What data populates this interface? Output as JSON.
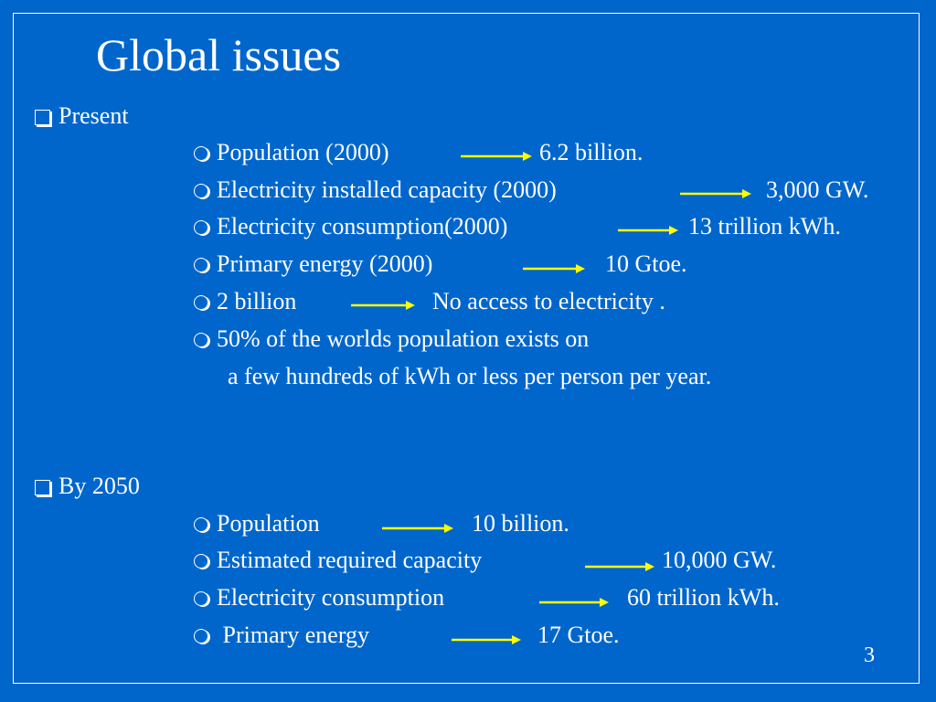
{
  "title": "Global issues",
  "present": {
    "heading": "Present",
    "items": [
      {
        "label": "Population (2000)",
        "value": "6.2 billion."
      },
      {
        "label": "Electricity installed capacity (2000)",
        "value": "3,000 GW."
      },
      {
        "label": "Electricity consumption(2000)",
        "value": "13 trillion kWh."
      },
      {
        "label": "Primary energy (2000)",
        "value": "10 Gtoe."
      },
      {
        "label": "2 billion",
        "value": "No access to electricity ."
      },
      {
        "label": "50% of the worlds population exists  on",
        "continuation": "a few hundreds of  kWh or less per person per year."
      }
    ]
  },
  "by2050": {
    "heading": "By 2050",
    "items": [
      {
        "label": "Population",
        "value": "10 billion."
      },
      {
        "label": "Estimated required capacity",
        "value": "10,000 GW."
      },
      {
        "label": "Electricity consumption",
        "value": "60 trillion kWh."
      },
      {
        "label": " Primary energy",
        "value": "17 Gtoe."
      }
    ]
  },
  "page_number": "3",
  "colors": {
    "background": "#0066cc",
    "text": "#ffffff",
    "arrow": "#ffff00"
  },
  "icons": {
    "section_bullet": "checkbox-icon",
    "item_bullet": "circle-bullet-icon",
    "connector": "right-arrow-icon"
  }
}
